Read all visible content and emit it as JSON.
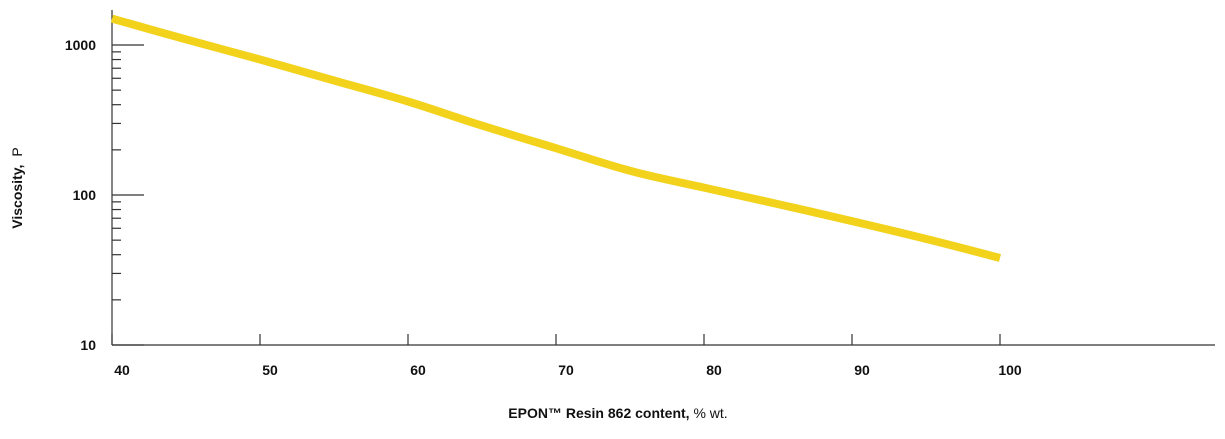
{
  "chart_data": {
    "type": "line",
    "title": "",
    "xlabel_bold": "EPON™ Resin 862 content,",
    "xlabel_unit": " % wt.",
    "ylabel_bold": "Viscosity,",
    "ylabel_unit": "P",
    "xlim": [
      40,
      100
    ],
    "ylim": [
      10,
      1500
    ],
    "y_scale": "log",
    "x_ticks": [
      40,
      50,
      60,
      70,
      80,
      90,
      100
    ],
    "x_tick_labels": [
      "40",
      "50",
      "60",
      "70",
      "80",
      "90",
      "100"
    ],
    "y_ticks": [
      10,
      100,
      1000
    ],
    "y_tick_labels": [
      "10",
      "100",
      "1000"
    ],
    "grid": false,
    "legend": "none",
    "series": [
      {
        "color": "#f2d21b",
        "x": [
          40,
          45,
          50,
          55,
          60,
          65,
          70,
          75,
          80,
          85,
          90,
          95,
          100
        ],
        "y": [
          1500,
          1090,
          800,
          580,
          420,
          290,
          205,
          145,
          112,
          87,
          67,
          51,
          38
        ]
      }
    ]
  }
}
